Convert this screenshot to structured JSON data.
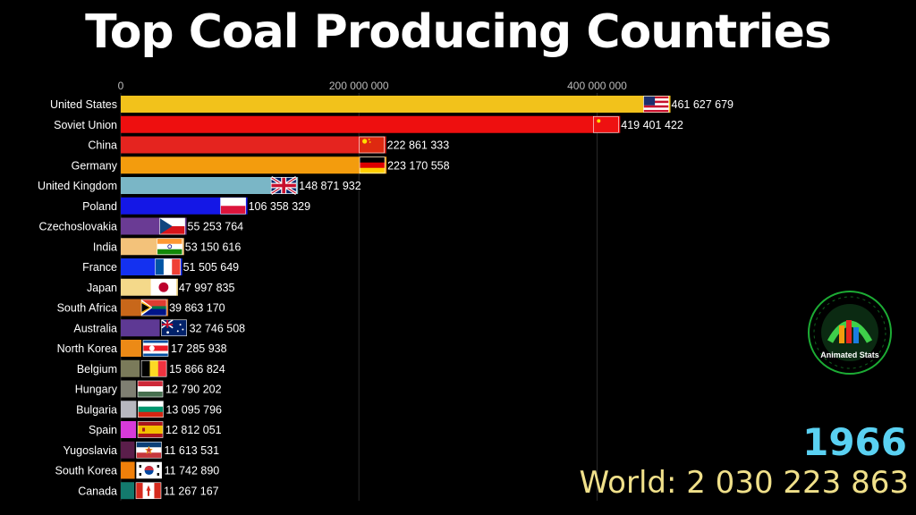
{
  "title": "Top Coal Producing Countries",
  "year": "1966",
  "world_label": "World: 2 030 223 863",
  "logo": {
    "text": "Animated Stats",
    "ring_color": "#1fbf3a",
    "icon": "mountain-chart-logo-icon"
  },
  "chart_data": {
    "type": "bar",
    "orientation": "horizontal",
    "title": "Top Coal Producing Countries",
    "xlim": [
      0,
      470000000
    ],
    "ticks": [
      0,
      200000000,
      400000000
    ],
    "tick_labels": [
      "0",
      "200 000 000",
      "400 000 000"
    ],
    "grid": true,
    "categories": [
      "United States",
      "Soviet Union",
      "China",
      "Germany",
      "United Kingdom",
      "Poland",
      "Czechoslovakia",
      "India",
      "France",
      "Japan",
      "South Africa",
      "Australia",
      "North Korea",
      "Belgium",
      "Hungary",
      "Bulgaria",
      "Spain",
      "Yugoslavia",
      "South Korea",
      "Canada"
    ],
    "values": [
      461627679,
      419401422,
      222861333,
      223170558,
      148871932,
      106358329,
      55253764,
      53150616,
      51505649,
      47997835,
      39863170,
      32746508,
      17285938,
      15866824,
      12790202,
      13095796,
      12812051,
      11613531,
      11742890,
      11267167
    ],
    "value_labels": [
      "461 627 679",
      "419 401 422",
      "222 861 333",
      "223 170 558",
      "148 871 932",
      "106 358 329",
      "55 253 764",
      "53 150 616",
      "51 505 649",
      "47 997 835",
      "39 863 170",
      "32 746 508",
      "17 285 938",
      "15 866 824",
      "12 790 202",
      "13 095 796",
      "12 812 051",
      "11 613 531",
      "11 742 890",
      "11 267 167"
    ],
    "colors": [
      "#f2c21b",
      "#ee0f0f",
      "#e5241f",
      "#f39c0d",
      "#7ab6c6",
      "#1417e6",
      "#6a3b94",
      "#f3c27a",
      "#1431f0",
      "#f4d98a",
      "#c8671a",
      "#5e3994",
      "#ec8a16",
      "#7a7a5a",
      "#7f7f72",
      "#b7b7bf",
      "#d83ad9",
      "#5a1e4a",
      "#f0800a",
      "#137a6d"
    ],
    "flags": [
      "us-flag-icon",
      "soviet-flag-icon",
      "china-flag-icon",
      "germany-flag-icon",
      "uk-flag-icon",
      "poland-flag-icon",
      "czechoslovakia-flag-icon",
      "india-flag-icon",
      "france-flag-icon",
      "japan-flag-icon",
      "south-africa-flag-icon",
      "australia-flag-icon",
      "north-korea-flag-icon",
      "belgium-flag-icon",
      "hungary-flag-icon",
      "bulgaria-flag-icon",
      "spain-flag-icon",
      "yugoslavia-flag-icon",
      "south-korea-flag-icon",
      "canada-flag-icon"
    ]
  }
}
